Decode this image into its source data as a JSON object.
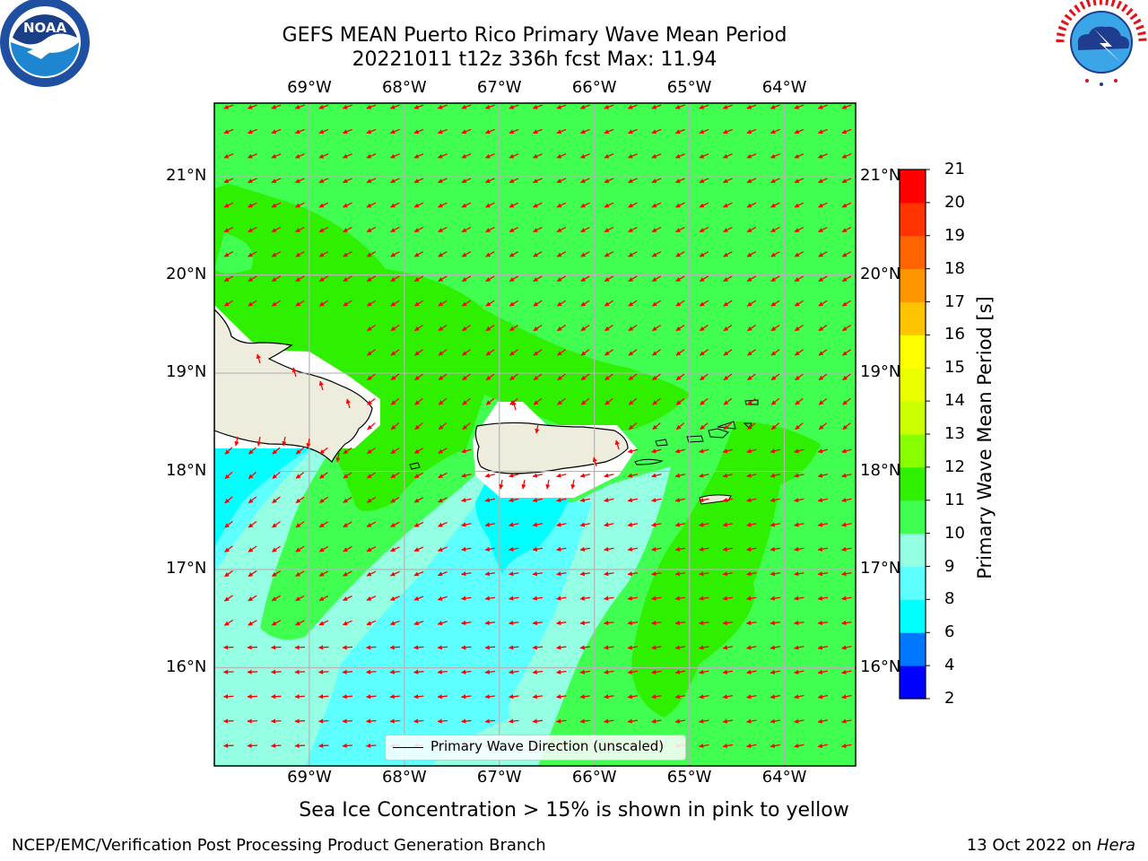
{
  "title_line1": "GEFS MEAN Puerto Rico Primary Wave Mean Period",
  "title_line2": "20221011 t12z 336h fcst   Max: 11.94",
  "subtitle": "Sea Ice Concentration > 15% is shown in pink to yellow",
  "footer": {
    "left": "NCEP/EMC/Verification Post Processing Product Generation Branch",
    "right_date": "13 Oct 2022 on ",
    "right_host": "Hera"
  },
  "legend": {
    "label": "Primary Wave Direction (unscaled)"
  },
  "logos": {
    "left": "NOAA",
    "right_text": "NATIONAL WEATHER SERVICE"
  },
  "map": {
    "lon_range": [
      -70,
      -63.25
    ],
    "lat_range": [
      15,
      21.75
    ],
    "lon_ticks": [
      "69°W",
      "68°W",
      "67°W",
      "66°W",
      "65°W",
      "64°W"
    ],
    "lat_ticks": [
      "21°N",
      "20°N",
      "19°N",
      "18°N",
      "17°N",
      "16°N"
    ],
    "grid": true,
    "colors": {
      "land": "#eeecdc",
      "arrow": "#ff0000",
      "grid": "#b4b4b4"
    }
  },
  "colorbar": {
    "title": "Primary Wave Mean Period [s]",
    "ticks": [
      "2",
      "4",
      "6",
      "8",
      "9",
      "10",
      "11",
      "12",
      "13",
      "14",
      "15",
      "16",
      "17",
      "18",
      "19",
      "20",
      "21"
    ],
    "colors": [
      "#0000ff",
      "#0077ff",
      "#00ffff",
      "#5effff",
      "#94ffe2",
      "#40ff50",
      "#2ef000",
      "#88ff00",
      "#ccff00",
      "#eaff00",
      "#ffff00",
      "#ffc400",
      "#ff9600",
      "#ff6400",
      "#ff3400",
      "#ff0000"
    ]
  },
  "chart_data": {
    "type": "heatmap",
    "title": "GEFS MEAN Puerto Rico Primary Wave Mean Period",
    "subtitle": "20221011 t12z 336h fcst   Max: 11.94",
    "variable": "Primary Wave Mean Period [s]",
    "max": 11.94,
    "xlim": [
      -70,
      -63.25
    ],
    "ylim": [
      15,
      21.75
    ]
  }
}
